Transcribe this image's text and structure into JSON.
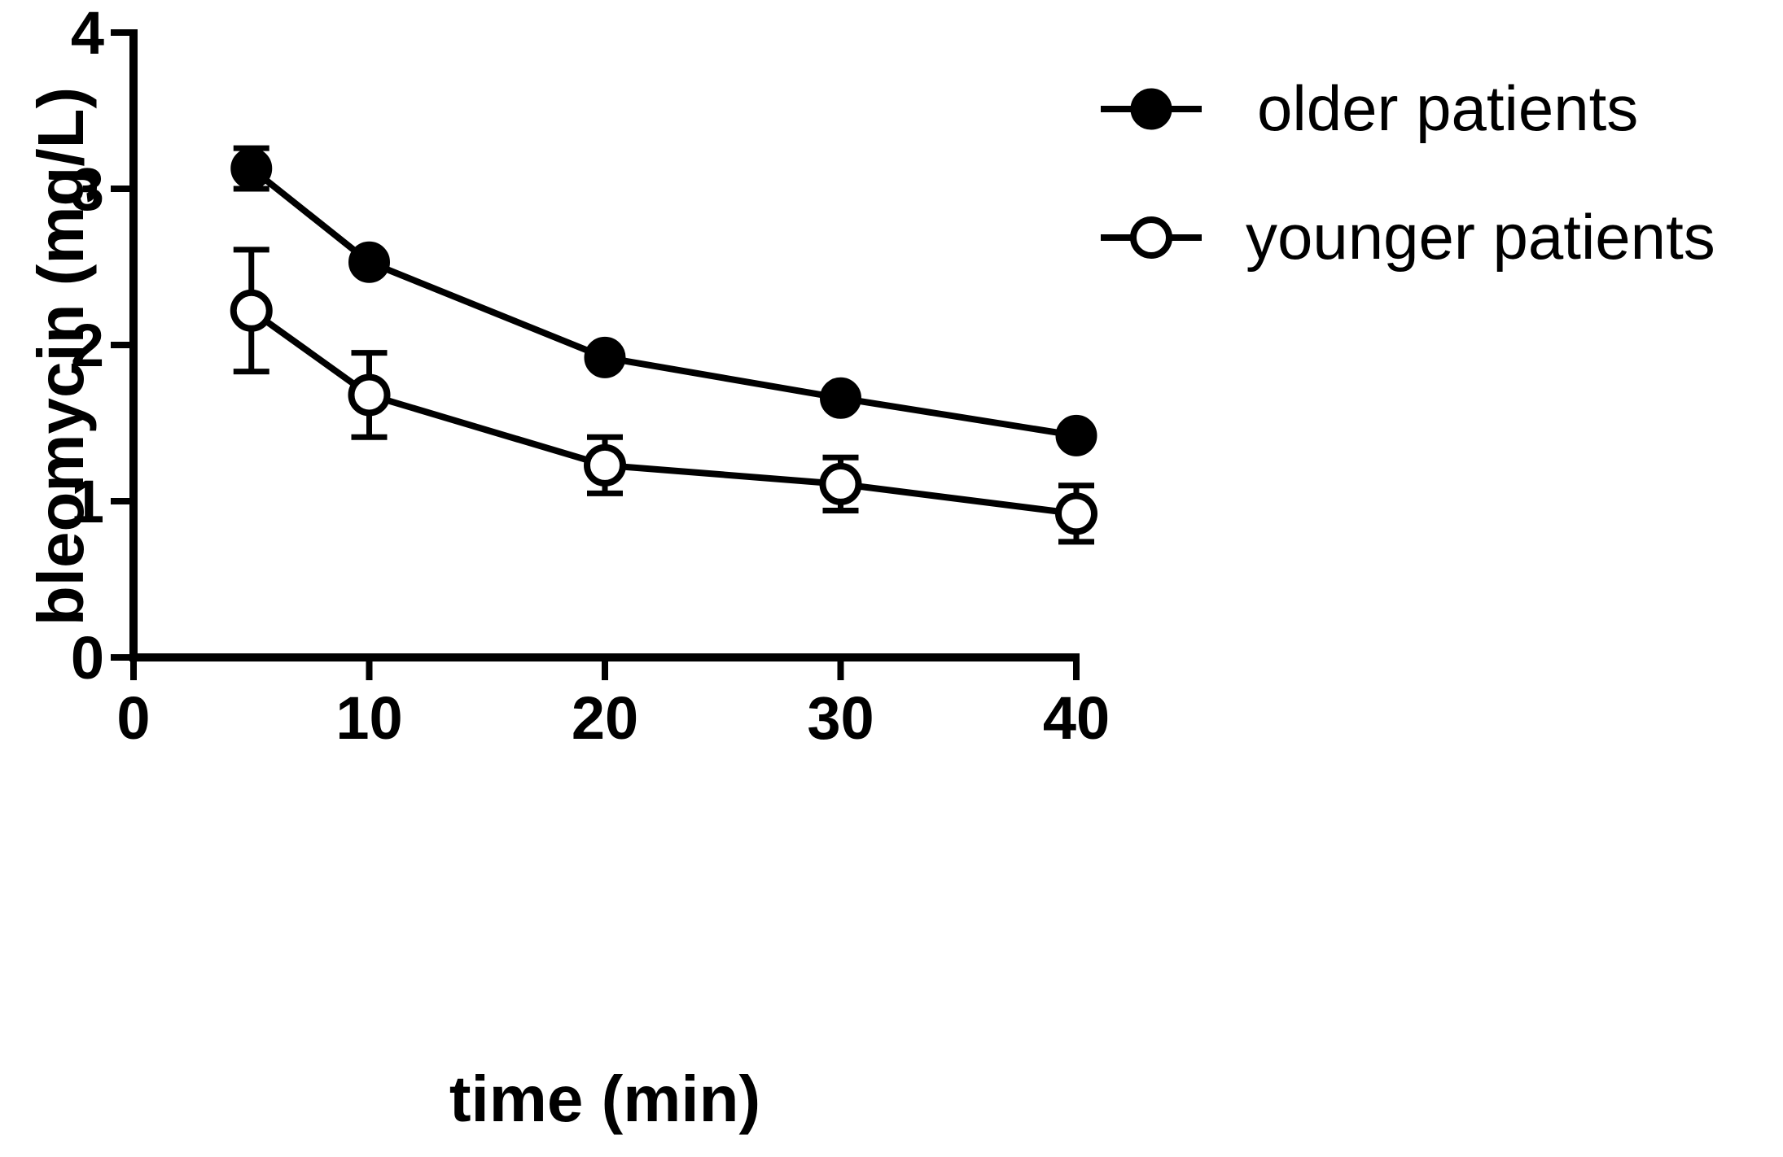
{
  "chart_data": {
    "type": "line",
    "title": "",
    "xlabel": "time (min)",
    "ylabel": "bleomycin (mg/L)",
    "xlim": [
      0,
      40
    ],
    "ylim": [
      0,
      4
    ],
    "x_ticks": [
      0,
      10,
      20,
      30,
      40
    ],
    "y_ticks": [
      0,
      1,
      2,
      3,
      4
    ],
    "x_tick_labels": [
      "0",
      "10",
      "20",
      "30",
      "40"
    ],
    "y_tick_labels": [
      "0",
      "1",
      "2",
      "3",
      "4"
    ],
    "grid": false,
    "legend_position": "top-right",
    "series": [
      {
        "name": "older patients",
        "marker": "filled-circle",
        "color": "#000000",
        "x": [
          5,
          10,
          20,
          30,
          40
        ],
        "y": [
          3.13,
          2.53,
          1.92,
          1.66,
          1.42
        ],
        "error": [
          0.13,
          0.0,
          0.0,
          0.0,
          0.0
        ]
      },
      {
        "name": "younger patients",
        "marker": "open-circle",
        "color": "#000000",
        "x": [
          5,
          10,
          20,
          30,
          40
        ],
        "y": [
          2.22,
          1.68,
          1.23,
          1.11,
          0.92
        ],
        "error": [
          0.39,
          0.27,
          0.18,
          0.17,
          0.18
        ]
      }
    ]
  }
}
